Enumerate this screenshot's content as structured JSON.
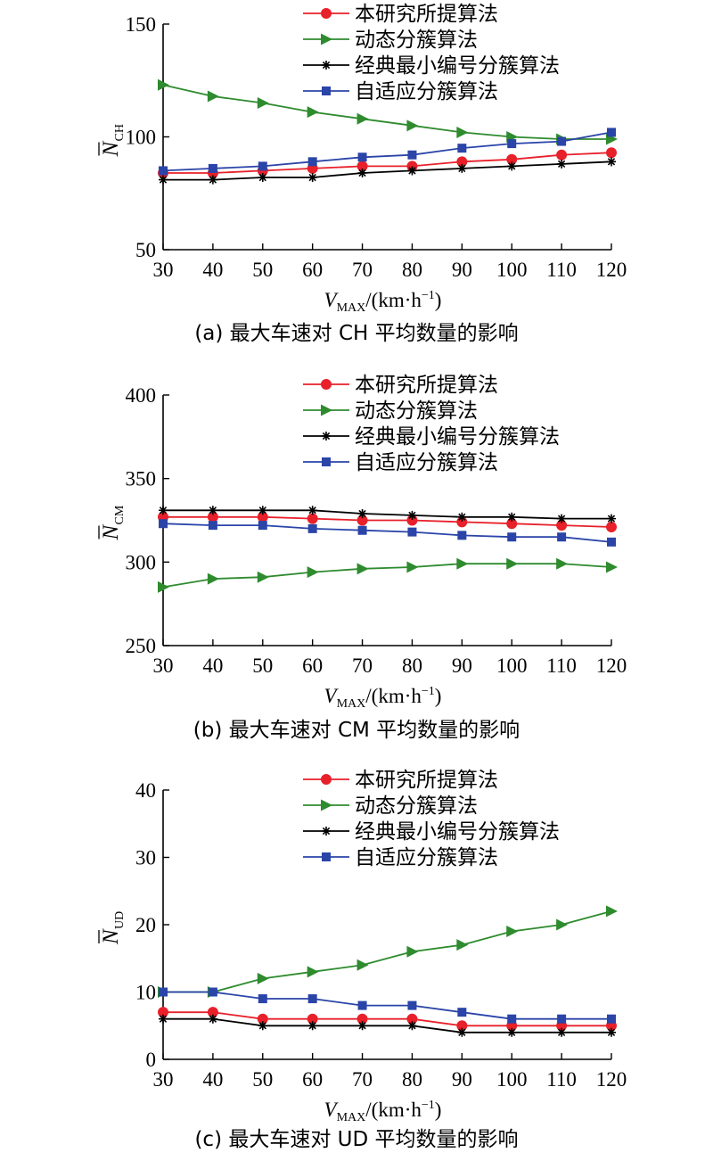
{
  "chart_data": [
    {
      "type": "line",
      "caption": "(a) 最大车速对 CH 平均数量的影响",
      "ylabel": {
        "symbol": "N",
        "subscript": "CH"
      },
      "xlabel": {
        "symbol": "V",
        "subscript": "MAX",
        "unit": "/(km·h",
        "exponent": "−1",
        "close": ")"
      },
      "x": [
        30,
        40,
        50,
        60,
        70,
        80,
        90,
        100,
        110,
        120
      ],
      "xticks": [
        "30",
        "40",
        "50",
        "60",
        "70",
        "80",
        "90",
        "100",
        "110",
        "120"
      ],
      "ylim": [
        50,
        150
      ],
      "yticks": [
        {
          "value": 50,
          "label": "50"
        },
        {
          "value": 100,
          "label": "100"
        },
        {
          "value": 150,
          "label": "150"
        }
      ],
      "legend_position": "top-right",
      "series": [
        {
          "name": "本研究所提算法",
          "color": "#e8202a",
          "marker": "circle",
          "values": [
            84,
            84,
            85,
            86,
            87,
            87,
            89,
            90,
            92,
            93
          ]
        },
        {
          "name": "动态分簇算法",
          "color": "#2e8b2e",
          "marker": "triangle-right",
          "values": [
            123,
            118,
            115,
            111,
            108,
            105,
            102,
            100,
            99,
            99
          ]
        },
        {
          "name": "经典最小编号分簇算法",
          "color": "#000000",
          "marker": "asterisk",
          "values": [
            81,
            81,
            82,
            82,
            84,
            85,
            86,
            87,
            88,
            89
          ]
        },
        {
          "name": "自适应分簇算法",
          "color": "#2a44a8",
          "marker": "square",
          "values": [
            85,
            86,
            87,
            89,
            91,
            92,
            95,
            97,
            98,
            102
          ]
        }
      ]
    },
    {
      "type": "line",
      "caption": "(b) 最大车速对 CM 平均数量的影响",
      "ylabel": {
        "symbol": "N",
        "subscript": "CM"
      },
      "xlabel": {
        "symbol": "V",
        "subscript": "MAX",
        "unit": "/(km·h",
        "exponent": "−1",
        "close": ")"
      },
      "x": [
        30,
        40,
        50,
        60,
        70,
        80,
        90,
        100,
        110,
        120
      ],
      "xticks": [
        "30",
        "40",
        "50",
        "60",
        "70",
        "80",
        "90",
        "100",
        "110",
        "120"
      ],
      "ylim": [
        250,
        400
      ],
      "yticks": [
        {
          "value": 250,
          "label": "250"
        },
        {
          "value": 300,
          "label": "300"
        },
        {
          "value": 350,
          "label": "350"
        },
        {
          "value": 400,
          "label": "400"
        }
      ],
      "legend_position": "top-right",
      "series": [
        {
          "name": "本研究所提算法",
          "color": "#e8202a",
          "marker": "circle",
          "values": [
            327,
            327,
            327,
            326,
            325,
            325,
            324,
            323,
            322,
            321
          ]
        },
        {
          "name": "动态分簇算法",
          "color": "#2e8b2e",
          "marker": "triangle-right",
          "values": [
            285,
            290,
            291,
            294,
            296,
            297,
            299,
            299,
            299,
            297
          ]
        },
        {
          "name": "经典最小编号分簇算法",
          "color": "#000000",
          "marker": "asterisk",
          "values": [
            331,
            331,
            331,
            331,
            329,
            328,
            327,
            327,
            326,
            326
          ]
        },
        {
          "name": "自适应分簇算法",
          "color": "#2a44a8",
          "marker": "square",
          "values": [
            323,
            322,
            322,
            320,
            319,
            318,
            316,
            315,
            315,
            312
          ]
        }
      ]
    },
    {
      "type": "line",
      "caption": "(c) 最大车速对 UD 平均数量的影响",
      "ylabel": {
        "symbol": "N",
        "subscript": "UD"
      },
      "xlabel": {
        "symbol": "V",
        "subscript": "MAX",
        "unit": "/(km·h",
        "exponent": "−1",
        "close": ")"
      },
      "x": [
        30,
        40,
        50,
        60,
        70,
        80,
        90,
        100,
        110,
        120
      ],
      "xticks": [
        "30",
        "40",
        "50",
        "60",
        "70",
        "80",
        "90",
        "100",
        "110",
        "120"
      ],
      "ylim": [
        0,
        40
      ],
      "yticks": [
        {
          "value": 0,
          "label": "0"
        },
        {
          "value": 10,
          "label": "10"
        },
        {
          "value": 20,
          "label": "20"
        },
        {
          "value": 30,
          "label": "30"
        },
        {
          "value": 40,
          "label": "40"
        }
      ],
      "legend_position": "top-right",
      "series": [
        {
          "name": "本研究所提算法",
          "color": "#e8202a",
          "marker": "circle",
          "values": [
            7,
            7,
            6,
            6,
            6,
            6,
            5,
            5,
            5,
            5
          ]
        },
        {
          "name": "动态分簇算法",
          "color": "#2e8b2e",
          "marker": "triangle-right",
          "values": [
            10,
            10,
            12,
            13,
            14,
            16,
            17,
            19,
            20,
            22
          ]
        },
        {
          "name": "经典最小编号分簇算法",
          "color": "#000000",
          "marker": "asterisk",
          "values": [
            6,
            6,
            5,
            5,
            5,
            5,
            4,
            4,
            4,
            4
          ]
        },
        {
          "name": "自适应分簇算法",
          "color": "#2a44a8",
          "marker": "square",
          "values": [
            10,
            10,
            9,
            9,
            8,
            8,
            7,
            6,
            6,
            6
          ]
        }
      ]
    }
  ]
}
